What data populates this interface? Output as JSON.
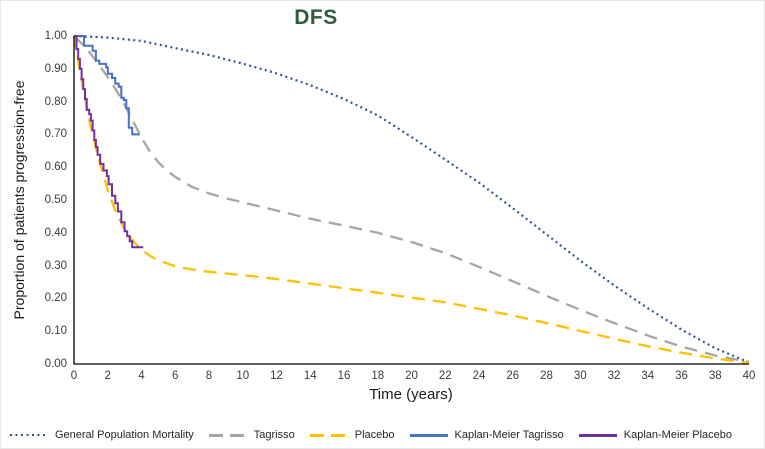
{
  "page": {
    "background": "#FFFFFF",
    "border_color": "#E6E6E6"
  },
  "title": {
    "text": "DFS",
    "color": "#2F5D3B"
  },
  "axes": {
    "y_title": "Proportion of patients progression-free",
    "x_title": "Time (years)",
    "y_ticks": [
      "1.00",
      "0.90",
      "0.80",
      "0.70",
      "0.60",
      "0.50",
      "0.40",
      "0.30",
      "0.20",
      "0.10",
      "0.00"
    ],
    "x_ticks": [
      "0",
      "2",
      "4",
      "6",
      "8",
      "10",
      "12",
      "14",
      "16",
      "18",
      "20",
      "22",
      "24",
      "26",
      "28",
      "30",
      "32",
      "34",
      "36",
      "38",
      "40"
    ],
    "axis_color": "#000000",
    "tick_text_color": "#3C3C3C"
  },
  "chart_data": {
    "type": "line",
    "title": "DFS",
    "xlabel": "Time (years)",
    "ylabel": "Proportion of patients progression-free",
    "xlim": [
      0,
      40
    ],
    "ylim": [
      0,
      1
    ],
    "x_tick_step": 2,
    "y_tick_step": 0.1,
    "grid": false,
    "legend_position": "bottom",
    "series": [
      {
        "name": "General Population Mortality",
        "color": "#2F5597",
        "line_style": "dotted",
        "interp": "linear",
        "points": [
          [
            0,
            1.0
          ],
          [
            2,
            0.995
          ],
          [
            4,
            0.985
          ],
          [
            6,
            0.963
          ],
          [
            8,
            0.942
          ],
          [
            10,
            0.916
          ],
          [
            12,
            0.886
          ],
          [
            14,
            0.85
          ],
          [
            16,
            0.808
          ],
          [
            18,
            0.758
          ],
          [
            20,
            0.692
          ],
          [
            22,
            0.623
          ],
          [
            24,
            0.553
          ],
          [
            26,
            0.475
          ],
          [
            28,
            0.395
          ],
          [
            30,
            0.315
          ],
          [
            32,
            0.24
          ],
          [
            34,
            0.17
          ],
          [
            36,
            0.105
          ],
          [
            38,
            0.048
          ],
          [
            40,
            0.005
          ]
        ]
      },
      {
        "name": "Tagrisso",
        "color": "#A6A6A6",
        "line_style": "dashed",
        "interp": "linear",
        "points": [
          [
            0,
            1.0
          ],
          [
            0.5,
            0.975
          ],
          [
            1,
            0.945
          ],
          [
            1.5,
            0.91
          ],
          [
            2,
            0.875
          ],
          [
            2.5,
            0.835
          ],
          [
            3,
            0.79
          ],
          [
            3.5,
            0.74
          ],
          [
            4,
            0.69
          ],
          [
            4.5,
            0.648
          ],
          [
            5,
            0.615
          ],
          [
            5.5,
            0.59
          ],
          [
            6,
            0.57
          ],
          [
            7,
            0.54
          ],
          [
            8,
            0.52
          ],
          [
            9,
            0.505
          ],
          [
            10,
            0.493
          ],
          [
            12,
            0.468
          ],
          [
            14,
            0.443
          ],
          [
            16,
            0.422
          ],
          [
            18,
            0.4
          ],
          [
            20,
            0.372
          ],
          [
            22,
            0.338
          ],
          [
            24,
            0.296
          ],
          [
            26,
            0.252
          ],
          [
            28,
            0.208
          ],
          [
            30,
            0.165
          ],
          [
            32,
            0.125
          ],
          [
            34,
            0.087
          ],
          [
            36,
            0.053
          ],
          [
            38,
            0.026
          ],
          [
            40,
            0.006
          ]
        ]
      },
      {
        "name": "Placebo",
        "color": "#FFC000",
        "line_style": "dashed",
        "interp": "linear",
        "points": [
          [
            0,
            1.0
          ],
          [
            0.5,
            0.85
          ],
          [
            1,
            0.72
          ],
          [
            1.5,
            0.62
          ],
          [
            2,
            0.53
          ],
          [
            2.5,
            0.46
          ],
          [
            3,
            0.41
          ],
          [
            3.5,
            0.375
          ],
          [
            4,
            0.348
          ],
          [
            4.5,
            0.33
          ],
          [
            5,
            0.316
          ],
          [
            6,
            0.298
          ],
          [
            7,
            0.288
          ],
          [
            8,
            0.281
          ],
          [
            9,
            0.276
          ],
          [
            10,
            0.271
          ],
          [
            12,
            0.259
          ],
          [
            14,
            0.245
          ],
          [
            16,
            0.231
          ],
          [
            18,
            0.217
          ],
          [
            20,
            0.202
          ],
          [
            22,
            0.188
          ],
          [
            24,
            0.168
          ],
          [
            26,
            0.148
          ],
          [
            28,
            0.125
          ],
          [
            30,
            0.101
          ],
          [
            32,
            0.077
          ],
          [
            34,
            0.054
          ],
          [
            36,
            0.034
          ],
          [
            38,
            0.017
          ],
          [
            40,
            0.002
          ]
        ]
      },
      {
        "name": "Kaplan-Meier Tagrisso",
        "color": "#4472C4",
        "line_style": "solid",
        "interp": "step-after",
        "points": [
          [
            0,
            1.0
          ],
          [
            0.6,
            0.97
          ],
          [
            1.1,
            0.955
          ],
          [
            1.3,
            0.925
          ],
          [
            1.5,
            0.915
          ],
          [
            1.9,
            0.905
          ],
          [
            2.0,
            0.885
          ],
          [
            2.25,
            0.872
          ],
          [
            2.45,
            0.855
          ],
          [
            2.65,
            0.845
          ],
          [
            2.8,
            0.812
          ],
          [
            2.95,
            0.805
          ],
          [
            3.1,
            0.78
          ],
          [
            3.25,
            0.72
          ],
          [
            3.45,
            0.7
          ],
          [
            3.9,
            0.7
          ]
        ]
      },
      {
        "name": "Kaplan-Meier Placebo",
        "color": "#7030A0",
        "line_style": "solid",
        "interp": "step-after",
        "points": [
          [
            0,
            1.0
          ],
          [
            0.15,
            0.96
          ],
          [
            0.25,
            0.93
          ],
          [
            0.35,
            0.9
          ],
          [
            0.45,
            0.868
          ],
          [
            0.55,
            0.838
          ],
          [
            0.65,
            0.808
          ],
          [
            0.75,
            0.775
          ],
          [
            0.9,
            0.762
          ],
          [
            1.0,
            0.742
          ],
          [
            1.1,
            0.712
          ],
          [
            1.2,
            0.683
          ],
          [
            1.3,
            0.662
          ],
          [
            1.4,
            0.638
          ],
          [
            1.55,
            0.61
          ],
          [
            1.75,
            0.59
          ],
          [
            1.95,
            0.573
          ],
          [
            2.05,
            0.548
          ],
          [
            2.25,
            0.513
          ],
          [
            2.45,
            0.49
          ],
          [
            2.6,
            0.465
          ],
          [
            2.8,
            0.432
          ],
          [
            3.0,
            0.405
          ],
          [
            3.15,
            0.39
          ],
          [
            3.3,
            0.374
          ],
          [
            3.45,
            0.356
          ],
          [
            4.1,
            0.356
          ]
        ]
      }
    ]
  },
  "legend": {
    "items": [
      {
        "label": "General Population Mortality",
        "style": "dotted",
        "color": "#2F5597"
      },
      {
        "label": "Tagrisso",
        "style": "dashed",
        "color": "#A6A6A6"
      },
      {
        "label": "Placebo",
        "style": "dashed",
        "color": "#FFC000"
      },
      {
        "label": "Kaplan-Meier Tagrisso",
        "style": "solid",
        "color": "#4472C4"
      },
      {
        "label": "Kaplan-Meier Placebo",
        "style": "solid",
        "color": "#7030A0"
      }
    ]
  }
}
